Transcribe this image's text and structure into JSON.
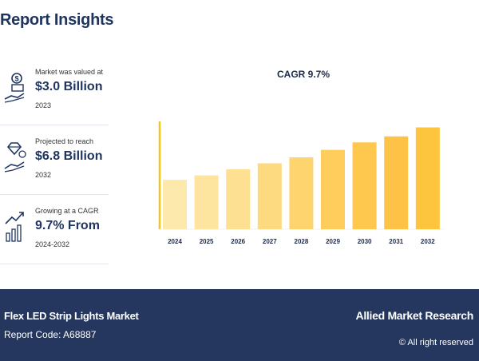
{
  "page": {
    "title": "Report Insights"
  },
  "stats": [
    {
      "label": "Market was valued at",
      "value": "$3.0 Billion",
      "sub": "2023",
      "icon": "money-hand-icon"
    },
    {
      "label": "Projected to reach",
      "value": "$6.8 Billion",
      "sub": "2032",
      "icon": "diamond-hand-icon"
    },
    {
      "label": "Growing at a CAGR",
      "value": "9.7% From",
      "sub": "2024-2032",
      "icon": "growth-chart-icon"
    }
  ],
  "chart_data": {
    "type": "bar",
    "title": "CAGR 9.7%",
    "categories": [
      "2024",
      "2025",
      "2026",
      "2027",
      "2028",
      "2029",
      "2030",
      "2031",
      "2032"
    ],
    "values": [
      3.3,
      3.6,
      4.0,
      4.4,
      4.8,
      5.3,
      5.8,
      6.2,
      6.8
    ],
    "ylim": [
      0,
      7.2
    ],
    "grid": false,
    "colors": [
      "#fde9ac",
      "#fde5a0",
      "#fde092",
      "#fdda80",
      "#fdd46e",
      "#fecd5c",
      "#fec84f",
      "#fec346",
      "#fdc43d"
    ],
    "axis_color": "#f5c518"
  },
  "footer": {
    "market_name": "Flex LED Strip Lights Market",
    "report_code": "Report Code: A68887",
    "brand": "Allied Market Research",
    "rights": "© All right reserved"
  }
}
